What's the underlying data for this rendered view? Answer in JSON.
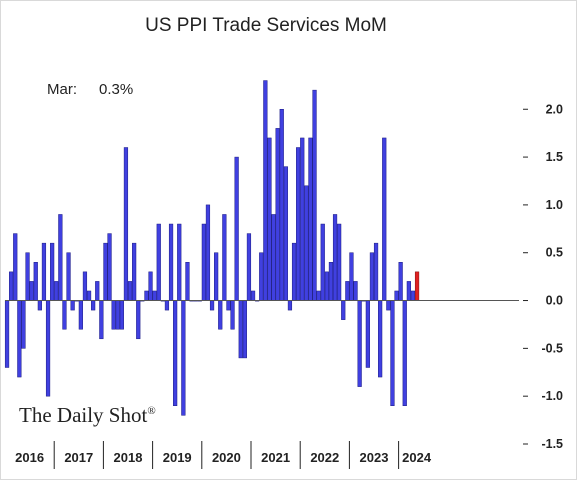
{
  "chart_data": {
    "type": "bar",
    "title": "US PPI Trade Services MoM",
    "annotation": {
      "label": "Mar:",
      "value": "0.3%"
    },
    "ylim": [
      -1.5,
      2.4
    ],
    "yticks": [
      2.0,
      1.5,
      1.0,
      0.5,
      0.0,
      -0.5,
      -1.0,
      -1.5
    ],
    "ytick_labels": [
      "2.0",
      "1.5",
      "1.0",
      "0.5",
      "0.0",
      "-0.5",
      "-1.0",
      "-1.5"
    ],
    "x_start": "2016-01",
    "year_labels": [
      "2016",
      "2017",
      "2018",
      "2019",
      "2020",
      "2021",
      "2022",
      "2023",
      "2024"
    ],
    "values": [
      -0.7,
      0.3,
      0.7,
      -0.8,
      -0.5,
      0.5,
      0.2,
      0.4,
      -0.1,
      0.6,
      -1.0,
      0.6,
      0.2,
      0.9,
      -0.3,
      0.5,
      -0.1,
      0.0,
      -0.3,
      0.3,
      0.1,
      -0.1,
      0.2,
      -0.4,
      0.6,
      0.7,
      -0.3,
      -0.3,
      -0.3,
      1.6,
      0.2,
      0.6,
      -0.4,
      0.0,
      0.1,
      0.3,
      0.1,
      0.8,
      0.0,
      -0.1,
      0.8,
      -1.1,
      0.8,
      -1.2,
      0.4,
      0.0,
      0.0,
      0.0,
      0.8,
      1.0,
      -0.1,
      0.5,
      -0.3,
      0.9,
      -0.1,
      -0.3,
      1.5,
      -0.6,
      -0.6,
      0.7,
      0.1,
      0.0,
      0.5,
      2.3,
      1.7,
      0.9,
      1.8,
      2.0,
      1.4,
      -0.1,
      0.6,
      1.6,
      1.7,
      1.2,
      1.7,
      2.2,
      0.1,
      0.8,
      0.3,
      0.4,
      0.9,
      0.8,
      -0.2,
      0.2,
      0.5,
      0.2,
      -0.9,
      0.0,
      -0.7,
      0.5,
      0.6,
      -0.8,
      1.7,
      -0.1,
      -1.1,
      0.1,
      0.4,
      -1.1,
      0.2,
      0.1,
      0.3
    ],
    "colors": {
      "bar": "#4040e0",
      "bar_edge": "#1a1a80",
      "latest_bar": "#e02020",
      "latest_edge": "#801010",
      "zero_line": "#555555",
      "axis": "#222222"
    },
    "grid": false,
    "legend": "none"
  },
  "watermark": {
    "text": "The Daily Shot",
    "mark": "®"
  }
}
